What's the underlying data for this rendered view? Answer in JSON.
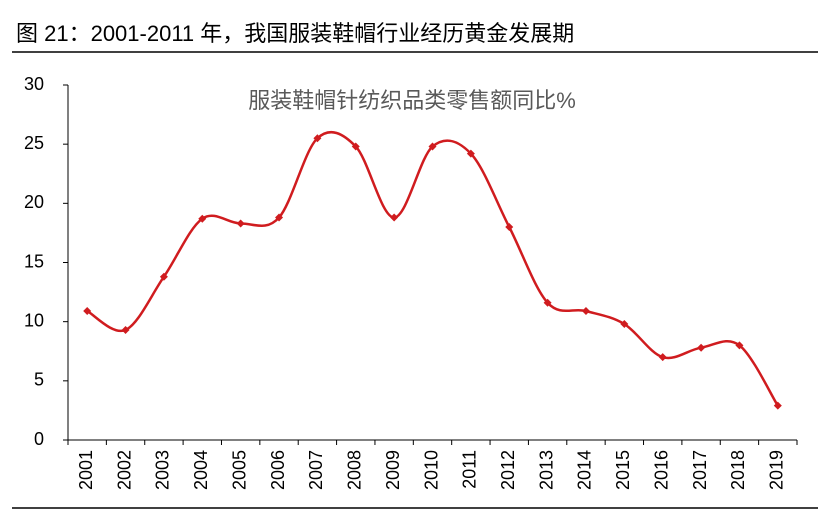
{
  "caption": "图 21：2001-2011 年，我国服装鞋帽行业经历黄金发展期",
  "chart_data": {
    "type": "line",
    "title": "服装鞋帽针纺织品类零售额同比%",
    "categories": [
      "2001",
      "2002",
      "2003",
      "2004",
      "2005",
      "2006",
      "2007",
      "2008",
      "2009",
      "2010",
      "2011",
      "2012",
      "2013",
      "2014",
      "2015",
      "2016",
      "2017",
      "2018",
      "2019"
    ],
    "values": [
      10.9,
      9.3,
      13.8,
      18.7,
      18.3,
      18.8,
      25.5,
      24.8,
      18.8,
      24.8,
      24.2,
      18.0,
      11.6,
      10.9,
      9.8,
      7.0,
      7.8,
      8.0,
      2.9
    ],
    "color": "#d01c1f",
    "smooth": true,
    "markers": true,
    "ylim": [
      0,
      30
    ],
    "yticks": [
      0,
      5,
      10,
      15,
      20,
      25,
      30
    ],
    "grid": false
  }
}
